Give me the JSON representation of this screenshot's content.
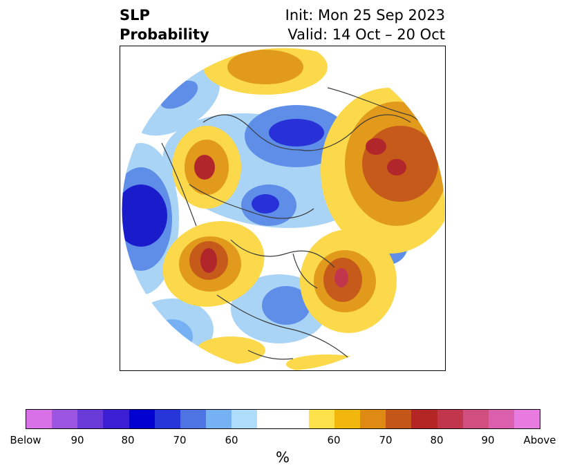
{
  "header": {
    "variable": "SLP",
    "product": "Probability",
    "init_label": "Init: Mon 25 Sep 2023",
    "valid_label": "Valid: 14 Oct – 20 Oct"
  },
  "map": {
    "projection": "north-polar-stereographic",
    "colors": {
      "below_90": "#2830d8",
      "below_80": "#3b5fe0",
      "below_70": "#5e8ee8",
      "below_60": "#a9d4f6",
      "neutral": "#ffffff",
      "above_60": "#fbd94a",
      "above_70": "#e19a1c",
      "above_80": "#c65a1a",
      "above_90": "#b1262a",
      "coast": "#3a3a3a"
    }
  },
  "colorbar": {
    "segments": [
      "#d870e8",
      "#9b55e0",
      "#6a3ad8",
      "#3c1fd4",
      "#0000d0",
      "#2636d9",
      "#4e74e4",
      "#76b2f3",
      "#aedcfa",
      "#ffffff",
      "#ffffff",
      "#fde14a",
      "#f1b70c",
      "#df8a12",
      "#c5561a",
      "#b32625",
      "#c1364d",
      "#d14e81",
      "#dc5fae",
      "#e87be0"
    ],
    "ticks": [
      {
        "label": "Below"
      },
      {
        "label": "90"
      },
      {
        "label": "80"
      },
      {
        "label": "70"
      },
      {
        "label": "60"
      },
      {
        "label": "60"
      },
      {
        "label": "70"
      },
      {
        "label": "80"
      },
      {
        "label": "90"
      },
      {
        "label": "Above"
      }
    ],
    "unit": "%"
  }
}
